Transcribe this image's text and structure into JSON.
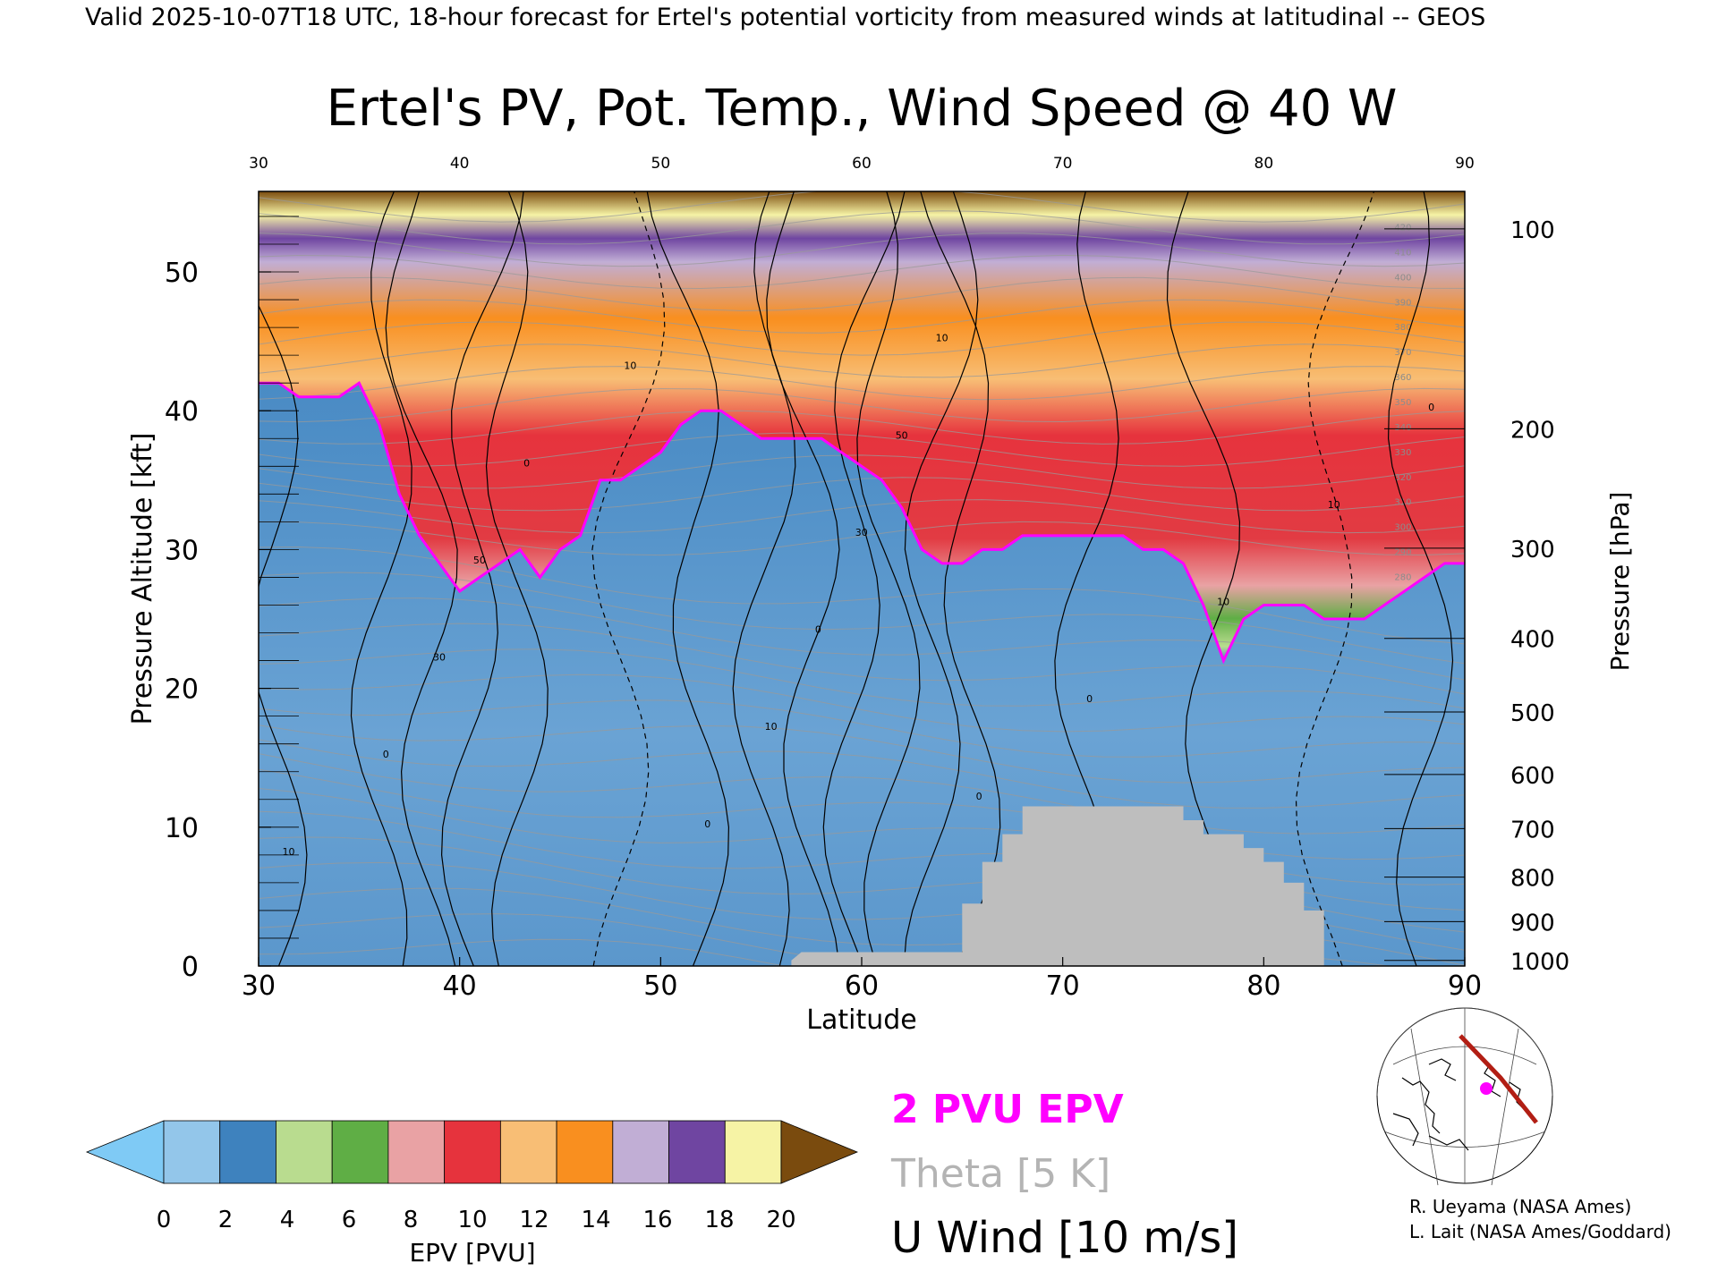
{
  "header": {
    "valid_line": "Valid 2025-10-07T18 UTC, 18-hour forecast for Ertel's potential vorticity from measured winds at latitudinal -- GEOS"
  },
  "chart_data": {
    "type": "heatmap",
    "title": "Ertel's PV, Pot. Temp., Wind Speed @ 40 W",
    "xlabel": "Latitude",
    "ylabel_left": "Pressure Altitude [kft]",
    "ylabel_right": "Pressure [hPa]",
    "xlim": [
      30,
      90
    ],
    "ylim": [
      0,
      55.8
    ],
    "x_ticks": [
      "30",
      "40",
      "50",
      "60",
      "70",
      "80",
      "90"
    ],
    "y_ticks": [
      "0",
      "10",
      "20",
      "30",
      "40",
      "50"
    ],
    "pressure_ticks": [
      {
        "label": "100",
        "kft": 53.1
      },
      {
        "label": "200",
        "kft": 38.7
      },
      {
        "label": "300",
        "kft": 30.1
      },
      {
        "label": "400",
        "kft": 23.6
      },
      {
        "label": "500",
        "kft": 18.3
      },
      {
        "label": "600",
        "kft": 13.8
      },
      {
        "label": "700",
        "kft": 9.9
      },
      {
        "label": "800",
        "kft": 6.4
      },
      {
        "label": "900",
        "kft": 3.2
      },
      {
        "label": "1000",
        "kft": 0.4
      }
    ],
    "tropopause_2pvu_kft": {
      "lat": [
        30,
        31,
        32,
        33,
        34,
        35,
        36,
        37,
        38,
        39,
        40,
        41,
        42,
        43,
        44,
        45,
        46,
        47,
        48,
        49,
        50,
        51,
        52,
        53,
        54,
        55,
        56,
        57,
        58,
        59,
        60,
        61,
        62,
        63,
        64,
        65,
        66,
        67,
        68,
        69,
        70,
        71,
        72,
        73,
        74,
        75,
        76,
        77,
        78,
        79,
        80,
        81,
        82,
        83,
        84,
        85,
        86,
        87,
        88,
        89,
        90
      ],
      "kft": [
        42,
        42,
        41,
        41,
        41,
        42,
        39,
        34,
        31,
        29,
        27,
        28,
        29,
        30,
        28,
        30,
        31,
        35,
        35,
        36,
        37,
        39,
        40,
        40,
        39,
        38,
        38,
        38,
        38,
        37,
        36,
        35,
        33,
        30,
        29,
        29,
        30,
        30,
        31,
        31,
        31,
        31,
        31,
        31,
        30,
        30,
        29,
        26,
        22,
        25,
        26,
        26,
        26,
        25,
        25,
        25,
        26,
        27,
        28,
        29,
        29
      ]
    },
    "u_wind_contours": {
      "unit": "m/s",
      "interval": 10,
      "labels": [
        "10",
        "0",
        "30",
        "50",
        "0",
        "10",
        "0",
        "10",
        "0",
        "30",
        "50",
        "10",
        "0",
        "0",
        "10",
        "10",
        "0"
      ]
    },
    "theta_contour_interval_K": 5,
    "theta_labels": [
      "420",
      "410",
      "400",
      "390",
      "380",
      "370",
      "360",
      "350",
      "340",
      "330",
      "320",
      "310",
      "300",
      "290",
      "280"
    ],
    "terrain": {
      "color": "#bebebe",
      "lat": [
        56.5,
        57,
        65,
        65,
        66,
        66,
        67,
        67,
        68,
        68,
        76,
        76,
        77,
        77,
        79,
        79,
        80,
        80,
        81,
        81,
        82,
        82,
        83,
        83
      ],
      "top_kft": [
        0.4,
        1.0,
        1.0,
        4.5,
        4.5,
        7.5,
        7.5,
        9.5,
        9.5,
        11.5,
        11.5,
        10.5,
        10.5,
        9.5,
        9.5,
        8.5,
        8.5,
        7.5,
        7.5,
        6.0,
        6.0,
        4.0,
        4.0,
        1.0
      ]
    },
    "colorbar": {
      "label": "EPV [PVU]",
      "ticks": [
        "0",
        "2",
        "4",
        "6",
        "8",
        "10",
        "12",
        "14",
        "16",
        "18",
        "20"
      ],
      "under_color": "#7fcaf5",
      "over_color": "#7a4b0e",
      "colors": [
        "#93c6ea",
        "#3e82be",
        "#b9dc8f",
        "#5fae45",
        "#e9a2a4",
        "#e6333d",
        "#f8be75",
        "#f98f1f",
        "#c1aed5",
        "#6f45a1",
        "#f6f3a5"
      ]
    },
    "legend_items": [
      {
        "label": "2 PVU EPV",
        "color": "#ff00ff"
      },
      {
        "label": "Theta [5 K]",
        "color": "#b4b4b4"
      },
      {
        "label": "U Wind [10 m/s]",
        "color": "#000000"
      }
    ],
    "credits": [
      "R. Ueyama (NASA Ames)",
      "L. Lait (NASA Ames/Goddard)"
    ],
    "inset_map": {
      "path_color": "#b21e14",
      "marker_color": "#ff00ff"
    }
  }
}
